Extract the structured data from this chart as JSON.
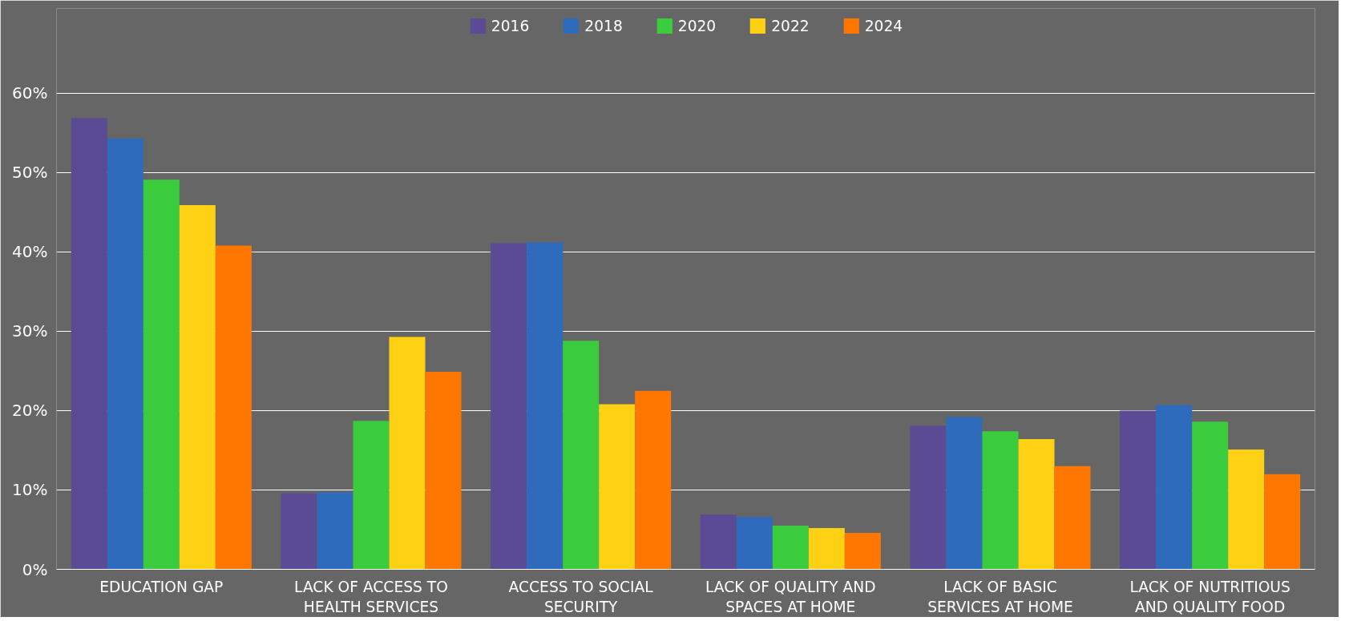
{
  "chart_data": {
    "type": "bar",
    "categories": [
      "EDUCATION GAP",
      "LACK OF ACCESS TO HEALTH SERVICES",
      "ACCESS TO SOCIAL SECURITY",
      "LACK OF QUALITY AND SPACES AT HOME",
      "LACK OF BASIC SERVICES AT HOME",
      "LACK OF NUTRITIOUS AND QUALITY FOOD"
    ],
    "series": [
      {
        "name": "2016",
        "color": "#5b4a94",
        "values": [
          56.9,
          9.6,
          41.1,
          6.9,
          18.1,
          20.0
        ]
      },
      {
        "name": "2018",
        "color": "#2e6bbd",
        "values": [
          54.3,
          9.7,
          41.2,
          6.6,
          19.2,
          20.7
        ]
      },
      {
        "name": "2020",
        "color": "#3acc3c",
        "values": [
          49.1,
          18.7,
          28.8,
          5.5,
          17.4,
          18.6
        ]
      },
      {
        "name": "2022",
        "color": "#fed114",
        "values": [
          45.9,
          29.3,
          20.8,
          5.2,
          16.4,
          15.1
        ]
      },
      {
        "name": "2024",
        "color": "#ff7700",
        "values": [
          40.8,
          24.9,
          22.5,
          4.6,
          13.0,
          12.0
        ]
      }
    ],
    "ylim": [
      0,
      70.7
    ],
    "yticks": [
      {
        "value": 0,
        "label": "0%"
      },
      {
        "value": 10,
        "label": "10%"
      },
      {
        "value": 20,
        "label": "20%"
      },
      {
        "value": 30,
        "label": "30%"
      },
      {
        "value": 40,
        "label": "40%"
      },
      {
        "value": 50,
        "label": "50%"
      },
      {
        "value": 60,
        "label": "60%"
      }
    ],
    "grid": "y",
    "legend": "top"
  }
}
